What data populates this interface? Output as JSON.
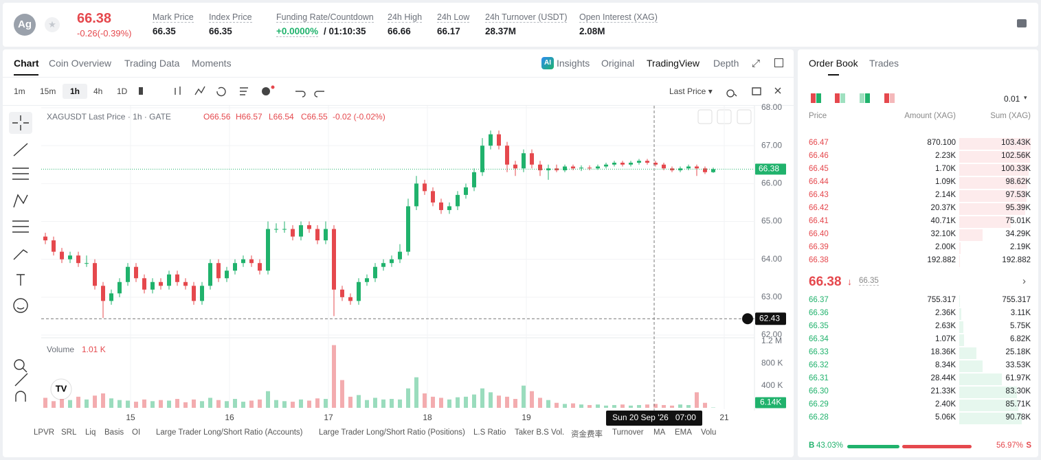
{
  "header": {
    "symbol_icon": "Ag",
    "price": "66.38",
    "change": "-0.26(-0.39%)",
    "stats": [
      {
        "label": "Mark Price",
        "value": "66.35"
      },
      {
        "label": "Index Price",
        "value": "66.35"
      },
      {
        "label": "Funding Rate/Countdown",
        "value": "+0.0000%",
        "extra": "/ 01:10:35"
      },
      {
        "label": "24h High",
        "value": "66.66"
      },
      {
        "label": "24h Low",
        "value": "66.17"
      },
      {
        "label": "24h Turnover (USDT)",
        "value": "28.37M"
      },
      {
        "label": "Open Interest (XAG)",
        "value": "2.08M"
      }
    ]
  },
  "tabs": [
    "Chart",
    "Coin Overview",
    "Trading Data",
    "Moments"
  ],
  "view_tabs": [
    "Insights",
    "Original",
    "TradingView",
    "Depth"
  ],
  "intervals": [
    "1m",
    "15m",
    "1h",
    "4h",
    "1D"
  ],
  "price_source": "Last Price",
  "chart": {
    "type": "candlestick",
    "legend": "XAGUSDT Last Price · 1h · GATE",
    "ohlc": {
      "o": "O66.56",
      "h": "H66.57",
      "l": "L66.54",
      "c": "C66.55",
      "chg": "-0.02 (-0.02%)"
    },
    "up_color": "#20b26c",
    "down_color": "#e5484d",
    "ylim": [
      62,
      68
    ],
    "yticks": [
      {
        "value": 62,
        "label": "62.00"
      },
      {
        "value": 63,
        "label": "63.00"
      },
      {
        "value": 64,
        "label": "64.00"
      },
      {
        "value": 65,
        "label": "65.00"
      },
      {
        "value": 66,
        "label": "66.00"
      },
      {
        "value": 67,
        "label": "67.00"
      },
      {
        "value": 68,
        "label": "68.00"
      }
    ],
    "xlim": [
      -1,
      179
    ],
    "xticks": [
      {
        "value": 20.67,
        "label": "15"
      },
      {
        "value": 44.67,
        "label": "16"
      },
      {
        "value": 68.67,
        "label": "17"
      },
      {
        "value": 92.67,
        "label": "18"
      },
      {
        "value": 116.67,
        "label": "19"
      },
      {
        "value": 164.67,
        "label": "21"
      }
    ],
    "x": [
      0,
      2,
      4,
      6,
      8,
      10,
      12,
      14,
      16,
      18,
      20,
      22,
      24,
      26,
      28,
      30,
      32,
      34,
      36,
      38,
      40,
      42,
      44,
      46,
      48,
      50,
      52,
      54,
      56,
      58,
      60,
      62,
      64,
      66,
      68,
      70,
      72,
      74,
      76,
      78,
      80,
      82,
      84,
      86,
      88,
      90,
      92,
      94,
      96,
      98,
      100,
      102,
      104,
      106,
      108,
      110,
      112,
      114,
      116,
      118,
      120,
      122,
      124,
      126,
      128,
      130,
      132,
      134,
      136,
      138,
      140,
      142,
      144,
      146,
      148,
      150,
      152,
      154,
      156,
      158,
      160,
      162
    ],
    "candles": [
      [
        64.6,
        64.7,
        64.4,
        64.5
      ],
      [
        64.5,
        64.6,
        64.1,
        64.2
      ],
      [
        64.2,
        64.3,
        63.9,
        64.0
      ],
      [
        64.0,
        64.2,
        63.9,
        64.1
      ],
      [
        64.1,
        64.2,
        63.8,
        63.9
      ],
      [
        63.9,
        64.1,
        63.8,
        63.9
      ],
      [
        63.9,
        64.0,
        63.2,
        63.3
      ],
      [
        63.3,
        63.4,
        62.45,
        62.9
      ],
      [
        62.9,
        63.2,
        62.8,
        63.1
      ],
      [
        63.1,
        63.5,
        63.0,
        63.4
      ],
      [
        63.4,
        63.9,
        63.3,
        63.8
      ],
      [
        63.8,
        63.9,
        63.4,
        63.5
      ],
      [
        63.5,
        63.6,
        63.1,
        63.2
      ],
      [
        63.2,
        63.5,
        63.1,
        63.4
      ],
      [
        63.4,
        63.5,
        63.2,
        63.3
      ],
      [
        63.3,
        63.7,
        63.2,
        63.6
      ],
      [
        63.6,
        63.7,
        63.3,
        63.4
      ],
      [
        63.4,
        63.5,
        63.2,
        63.3
      ],
      [
        63.3,
        63.4,
        62.8,
        62.9
      ],
      [
        62.9,
        63.4,
        62.8,
        63.3
      ],
      [
        63.3,
        64.0,
        63.2,
        63.9
      ],
      [
        63.9,
        64.0,
        63.4,
        63.5
      ],
      [
        63.5,
        63.8,
        63.4,
        63.7
      ],
      [
        63.7,
        64.0,
        63.6,
        63.9
      ],
      [
        63.9,
        64.1,
        63.8,
        64.0
      ],
      [
        64.0,
        64.1,
        63.8,
        63.9
      ],
      [
        63.9,
        64.0,
        63.6,
        63.7
      ],
      [
        63.7,
        65.0,
        63.6,
        64.8
      ],
      [
        64.8,
        64.95,
        64.7,
        64.8
      ],
      [
        64.8,
        65.0,
        64.7,
        64.8
      ],
      [
        64.8,
        64.9,
        64.5,
        64.6
      ],
      [
        64.6,
        65.0,
        64.5,
        64.9
      ],
      [
        64.9,
        65.0,
        64.7,
        64.8
      ],
      [
        64.8,
        64.9,
        64.4,
        64.5
      ],
      [
        64.5,
        65.0,
        64.4,
        64.8
      ],
      [
        64.8,
        64.9,
        62.5,
        63.2
      ],
      [
        63.2,
        63.3,
        62.9,
        63.0
      ],
      [
        63.0,
        63.1,
        62.8,
        62.9
      ],
      [
        62.9,
        63.5,
        62.8,
        63.4
      ],
      [
        63.4,
        63.6,
        63.3,
        63.5
      ],
      [
        63.5,
        63.9,
        63.4,
        63.8
      ],
      [
        63.8,
        64.0,
        63.7,
        63.9
      ],
      [
        63.9,
        64.1,
        63.8,
        64.0
      ],
      [
        64.0,
        64.4,
        63.9,
        64.2
      ],
      [
        64.2,
        65.6,
        64.1,
        65.4
      ],
      [
        65.4,
        66.2,
        65.3,
        66.0
      ],
      [
        66.0,
        66.1,
        65.7,
        65.8
      ],
      [
        65.8,
        65.9,
        65.4,
        65.5
      ],
      [
        65.5,
        65.6,
        65.2,
        65.3
      ],
      [
        65.3,
        65.5,
        65.2,
        65.4
      ],
      [
        65.4,
        65.8,
        65.3,
        65.7
      ],
      [
        65.7,
        66.0,
        65.6,
        65.9
      ],
      [
        65.9,
        66.4,
        65.8,
        66.3
      ],
      [
        66.3,
        67.2,
        66.2,
        67.0
      ],
      [
        67.0,
        67.4,
        66.9,
        67.3
      ],
      [
        67.3,
        67.4,
        66.9,
        67.0
      ],
      [
        67.0,
        67.1,
        66.3,
        66.5
      ],
      [
        66.5,
        66.6,
        66.2,
        66.4
      ],
      [
        66.4,
        66.9,
        66.3,
        66.8
      ],
      [
        66.8,
        66.9,
        66.4,
        66.5
      ],
      [
        66.5,
        66.6,
        66.2,
        66.35
      ],
      [
        66.35,
        66.5,
        66.1,
        66.4
      ],
      [
        66.4,
        66.5,
        66.3,
        66.35
      ],
      [
        66.35,
        66.5,
        66.3,
        66.45
      ],
      [
        66.45,
        66.5,
        66.35,
        66.4
      ],
      [
        66.4,
        66.48,
        66.33,
        66.42
      ],
      [
        66.42,
        66.48,
        66.35,
        66.4
      ],
      [
        66.4,
        66.5,
        66.36,
        66.45
      ],
      [
        66.45,
        66.55,
        66.4,
        66.5
      ],
      [
        66.5,
        66.6,
        66.45,
        66.55
      ],
      [
        66.55,
        66.6,
        66.45,
        66.5
      ],
      [
        66.5,
        66.6,
        66.45,
        66.55
      ],
      [
        66.55,
        66.65,
        66.5,
        66.6
      ],
      [
        66.6,
        66.65,
        66.5,
        66.55
      ],
      [
        66.55,
        66.6,
        66.45,
        66.5
      ],
      [
        66.5,
        66.55,
        66.35,
        66.4
      ],
      [
        66.4,
        66.45,
        66.3,
        66.35
      ],
      [
        66.35,
        66.45,
        66.3,
        66.4
      ],
      [
        66.4,
        66.5,
        66.35,
        66.45
      ],
      [
        66.45,
        66.5,
        66.2,
        66.4
      ],
      [
        66.4,
        66.45,
        66.25,
        66.3
      ],
      [
        66.3,
        66.42,
        66.28,
        66.38
      ]
    ],
    "last_price": {
      "value": 66.38,
      "label": "66.38"
    },
    "crosshair": {
      "x": 147.67,
      "price": {
        "value": 62.43,
        "label": "62.43"
      },
      "time_label": "Sun 20 Sep '26   07:00"
    },
    "volume": {
      "title": "Volume",
      "current": "1.01 K",
      "ylim": [
        0,
        1200000
      ],
      "yticks": [
        {
          "value": 400000,
          "label": "400 K"
        },
        {
          "value": 800000,
          "label": "800 K"
        },
        {
          "value": 1200000,
          "label": "1.2 M"
        }
      ],
      "values": [
        180000,
        120000,
        160000,
        140000,
        200000,
        150000,
        220000,
        260000,
        170000,
        140000,
        130000,
        110000,
        150000,
        120000,
        140000,
        130000,
        160000,
        100000,
        150000,
        120000,
        180000,
        140000,
        120000,
        160000,
        110000,
        130000,
        150000,
        300000,
        140000,
        120000,
        110000,
        150000,
        130000,
        170000,
        160000,
        1130000,
        500000,
        200000,
        230000,
        140000,
        180000,
        150000,
        160000,
        150000,
        350000,
        550000,
        260000,
        200000,
        180000,
        150000,
        190000,
        200000,
        240000,
        350000,
        280000,
        220000,
        200000,
        160000,
        400000,
        300000,
        180000,
        140000,
        90000,
        70000,
        80000,
        60000,
        50000,
        60000,
        40000,
        50000,
        60000,
        40000,
        50000,
        60000,
        70000,
        50000,
        40000,
        60000,
        50000,
        280000,
        90000,
        6140
      ],
      "last_label": "6.14K"
    }
  },
  "indicators": [
    "LPVR",
    "SRL",
    "Liq",
    "Basis",
    "OI",
    "Large Trader Long/Short Ratio (Accounts)",
    "Large Trader Long/Short Ratio (Positions)",
    "L.S Ratio",
    "Taker B.S Vol.",
    "资金费率",
    "Turnover",
    "MA",
    "EMA",
    "Volu"
  ],
  "order_book": {
    "tabs": [
      "Order Book",
      "Trades"
    ],
    "precision": "0.01",
    "columns": [
      "Price",
      "Amount (XAG)",
      "Sum (XAG)"
    ],
    "asks": [
      [
        "66.47",
        "870.100",
        "103.43K"
      ],
      [
        "66.46",
        "2.23K",
        "102.56K"
      ],
      [
        "66.45",
        "1.70K",
        "100.33K"
      ],
      [
        "66.44",
        "1.09K",
        "98.62K"
      ],
      [
        "66.43",
        "2.14K",
        "97.53K"
      ],
      [
        "66.42",
        "20.37K",
        "95.39K"
      ],
      [
        "66.41",
        "40.71K",
        "75.01K"
      ],
      [
        "66.40",
        "32.10K",
        "34.29K"
      ],
      [
        "66.39",
        "2.00K",
        "2.19K"
      ],
      [
        "66.38",
        "192.882",
        "192.882"
      ]
    ],
    "mid_price": "66.38",
    "mark_price": "66.35",
    "bids": [
      [
        "66.37",
        "755.317",
        "755.317"
      ],
      [
        "66.36",
        "2.36K",
        "3.11K"
      ],
      [
        "66.35",
        "2.63K",
        "5.75K"
      ],
      [
        "66.34",
        "1.07K",
        "6.82K"
      ],
      [
        "66.33",
        "18.36K",
        "25.18K"
      ],
      [
        "66.32",
        "8.34K",
        "33.53K"
      ],
      [
        "66.31",
        "28.44K",
        "61.97K"
      ],
      [
        "66.30",
        "21.33K",
        "83.30K"
      ],
      [
        "66.29",
        "2.40K",
        "85.71K"
      ],
      [
        "66.28",
        "5.06K",
        "90.78K"
      ]
    ],
    "buy_label": "B",
    "buy": "43.03%",
    "sell": "56.97%",
    "sell_label": "S"
  }
}
